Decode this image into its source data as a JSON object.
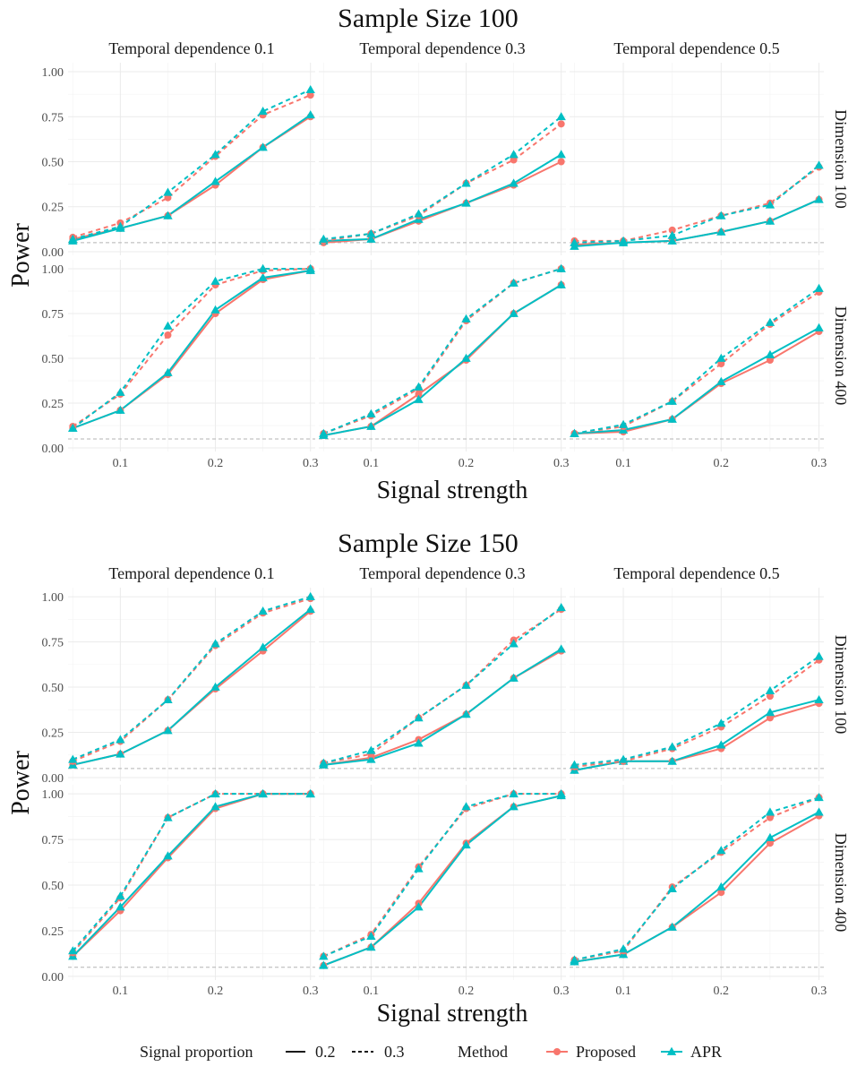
{
  "legend": {
    "proportion_title": "Signal proportion",
    "proportion_items": [
      {
        "label": "0.2",
        "linetype": "solid"
      },
      {
        "label": "0.3",
        "linetype": "dashed"
      }
    ],
    "method_title": "Method",
    "method_items": [
      {
        "label": "Proposed",
        "color": "#F8766D",
        "shape": "circle"
      },
      {
        "label": "APR",
        "color": "#00BFC4",
        "shape": "triangle"
      }
    ]
  },
  "chart_data": [
    {
      "type": "line",
      "title": "Sample Size 100",
      "xlabel": "Signal strength",
      "ylabel": "Power",
      "x": [
        0.05,
        0.1,
        0.15,
        0.2,
        0.25,
        0.3
      ],
      "x_ticks": [
        0.1,
        0.2,
        0.3
      ],
      "x_tick_labels": [
        "0.1",
        "0.2",
        "0.3"
      ],
      "xlim": [
        0.045,
        0.305
      ],
      "ylim": [
        -0.02,
        1.05
      ],
      "y_ticks": [
        0,
        0.25,
        0.5,
        0.75,
        1
      ],
      "y_tick_labels": [
        "0.00",
        "0.25",
        "0.50",
        "0.75",
        "1.00"
      ],
      "reference_line": 0.05,
      "col_facets": [
        "Temporal dependence 0.1",
        "Temporal dependence 0.3",
        "Temporal dependence 0.5"
      ],
      "row_facets": [
        "Dimension 100",
        "Dimension 400"
      ],
      "panels": [
        {
          "col": 0,
          "row": 0,
          "series": [
            {
              "method": "Proposed",
              "proportion": "0.2",
              "values": [
                0.07,
                0.13,
                0.2,
                0.37,
                0.58,
                0.75
              ]
            },
            {
              "method": "APR",
              "proportion": "0.2",
              "values": [
                0.06,
                0.13,
                0.2,
                0.39,
                0.58,
                0.76
              ]
            },
            {
              "method": "Proposed",
              "proportion": "0.3",
              "values": [
                0.08,
                0.16,
                0.3,
                0.53,
                0.76,
                0.87
              ]
            },
            {
              "method": "APR",
              "proportion": "0.3",
              "values": [
                0.07,
                0.14,
                0.33,
                0.54,
                0.78,
                0.9
              ]
            }
          ]
        },
        {
          "col": 1,
          "row": 0,
          "series": [
            {
              "method": "Proposed",
              "proportion": "0.2",
              "values": [
                0.05,
                0.07,
                0.17,
                0.27,
                0.37,
                0.5
              ]
            },
            {
              "method": "APR",
              "proportion": "0.2",
              "values": [
                0.06,
                0.07,
                0.18,
                0.27,
                0.38,
                0.54
              ]
            },
            {
              "method": "Proposed",
              "proportion": "0.3",
              "values": [
                0.06,
                0.1,
                0.2,
                0.38,
                0.51,
                0.71
              ]
            },
            {
              "method": "APR",
              "proportion": "0.3",
              "values": [
                0.07,
                0.1,
                0.21,
                0.38,
                0.54,
                0.75
              ]
            }
          ]
        },
        {
          "col": 2,
          "row": 0,
          "series": [
            {
              "method": "Proposed",
              "proportion": "0.2",
              "values": [
                0.04,
                0.05,
                0.06,
                0.11,
                0.17,
                0.29
              ]
            },
            {
              "method": "APR",
              "proportion": "0.2",
              "values": [
                0.03,
                0.05,
                0.06,
                0.11,
                0.17,
                0.29
              ]
            },
            {
              "method": "Proposed",
              "proportion": "0.3",
              "values": [
                0.06,
                0.06,
                0.12,
                0.2,
                0.27,
                0.47
              ]
            },
            {
              "method": "APR",
              "proportion": "0.3",
              "values": [
                0.05,
                0.06,
                0.09,
                0.2,
                0.26,
                0.48
              ]
            }
          ]
        },
        {
          "col": 0,
          "row": 1,
          "series": [
            {
              "method": "Proposed",
              "proportion": "0.2",
              "values": [
                0.11,
                0.21,
                0.41,
                0.75,
                0.94,
                0.99
              ]
            },
            {
              "method": "APR",
              "proportion": "0.2",
              "values": [
                0.11,
                0.21,
                0.42,
                0.77,
                0.95,
                0.99
              ]
            },
            {
              "method": "Proposed",
              "proportion": "0.3",
              "values": [
                0.12,
                0.3,
                0.63,
                0.91,
                0.99,
                1.0
              ]
            },
            {
              "method": "APR",
              "proportion": "0.3",
              "values": [
                0.11,
                0.31,
                0.68,
                0.93,
                1.0,
                1.0
              ]
            }
          ]
        },
        {
          "col": 1,
          "row": 1,
          "series": [
            {
              "method": "Proposed",
              "proportion": "0.2",
              "values": [
                0.07,
                0.12,
                0.3,
                0.49,
                0.75,
                0.91
              ]
            },
            {
              "method": "APR",
              "proportion": "0.2",
              "values": [
                0.07,
                0.12,
                0.27,
                0.5,
                0.75,
                0.91
              ]
            },
            {
              "method": "Proposed",
              "proportion": "0.3",
              "values": [
                0.08,
                0.18,
                0.33,
                0.71,
                0.92,
                1.0
              ]
            },
            {
              "method": "APR",
              "proportion": "0.3",
              "values": [
                0.08,
                0.19,
                0.34,
                0.72,
                0.92,
                1.0
              ]
            }
          ]
        },
        {
          "col": 2,
          "row": 1,
          "series": [
            {
              "method": "Proposed",
              "proportion": "0.2",
              "values": [
                0.08,
                0.09,
                0.16,
                0.36,
                0.49,
                0.65
              ]
            },
            {
              "method": "APR",
              "proportion": "0.2",
              "values": [
                0.08,
                0.1,
                0.16,
                0.37,
                0.52,
                0.67
              ]
            },
            {
              "method": "Proposed",
              "proportion": "0.3",
              "values": [
                0.08,
                0.12,
                0.26,
                0.47,
                0.69,
                0.87
              ]
            },
            {
              "method": "APR",
              "proportion": "0.3",
              "values": [
                0.08,
                0.13,
                0.26,
                0.5,
                0.7,
                0.89
              ]
            }
          ]
        }
      ]
    },
    {
      "type": "line",
      "title": "Sample Size 150",
      "xlabel": "Signal strength",
      "ylabel": "Power",
      "x": [
        0.05,
        0.1,
        0.15,
        0.2,
        0.25,
        0.3
      ],
      "x_ticks": [
        0.1,
        0.2,
        0.3
      ],
      "x_tick_labels": [
        "0.1",
        "0.2",
        "0.3"
      ],
      "xlim": [
        0.045,
        0.305
      ],
      "ylim": [
        -0.02,
        1.05
      ],
      "y_ticks": [
        0,
        0.25,
        0.5,
        0.75,
        1
      ],
      "y_tick_labels": [
        "0.00",
        "0.25",
        "0.50",
        "0.75",
        "1.00"
      ],
      "reference_line": 0.05,
      "col_facets": [
        "Temporal dependence 0.1",
        "Temporal dependence 0.3",
        "Temporal dependence 0.5"
      ],
      "row_facets": [
        "Dimension 100",
        "Dimension 400"
      ],
      "panels": [
        {
          "col": 0,
          "row": 0,
          "series": [
            {
              "method": "Proposed",
              "proportion": "0.2",
              "values": [
                0.07,
                0.13,
                0.26,
                0.49,
                0.7,
                0.92
              ]
            },
            {
              "method": "APR",
              "proportion": "0.2",
              "values": [
                0.07,
                0.13,
                0.26,
                0.5,
                0.72,
                0.93
              ]
            },
            {
              "method": "Proposed",
              "proportion": "0.3",
              "values": [
                0.09,
                0.2,
                0.43,
                0.73,
                0.91,
                0.99
              ]
            },
            {
              "method": "APR",
              "proportion": "0.3",
              "values": [
                0.1,
                0.21,
                0.43,
                0.74,
                0.92,
                1.0
              ]
            }
          ]
        },
        {
          "col": 1,
          "row": 0,
          "series": [
            {
              "method": "Proposed",
              "proportion": "0.2",
              "values": [
                0.07,
                0.11,
                0.21,
                0.35,
                0.55,
                0.7
              ]
            },
            {
              "method": "APR",
              "proportion": "0.2",
              "values": [
                0.07,
                0.1,
                0.19,
                0.35,
                0.55,
                0.71
              ]
            },
            {
              "method": "Proposed",
              "proportion": "0.3",
              "values": [
                0.08,
                0.13,
                0.33,
                0.51,
                0.76,
                0.93
              ]
            },
            {
              "method": "APR",
              "proportion": "0.3",
              "values": [
                0.08,
                0.15,
                0.33,
                0.51,
                0.74,
                0.94
              ]
            }
          ]
        },
        {
          "col": 2,
          "row": 0,
          "series": [
            {
              "method": "Proposed",
              "proportion": "0.2",
              "values": [
                0.04,
                0.09,
                0.09,
                0.16,
                0.33,
                0.41
              ]
            },
            {
              "method": "APR",
              "proportion": "0.2",
              "values": [
                0.04,
                0.09,
                0.09,
                0.18,
                0.36,
                0.43
              ]
            },
            {
              "method": "Proposed",
              "proportion": "0.3",
              "values": [
                0.06,
                0.09,
                0.16,
                0.28,
                0.45,
                0.65
              ]
            },
            {
              "method": "APR",
              "proportion": "0.3",
              "values": [
                0.07,
                0.1,
                0.17,
                0.3,
                0.48,
                0.67
              ]
            }
          ]
        },
        {
          "col": 0,
          "row": 1,
          "series": [
            {
              "method": "Proposed",
              "proportion": "0.2",
              "values": [
                0.11,
                0.36,
                0.65,
                0.92,
                1.0,
                1.0
              ]
            },
            {
              "method": "APR",
              "proportion": "0.2",
              "values": [
                0.11,
                0.38,
                0.66,
                0.93,
                1.0,
                1.0
              ]
            },
            {
              "method": "Proposed",
              "proportion": "0.3",
              "values": [
                0.13,
                0.43,
                0.87,
                1.0,
                1.0,
                1.0
              ]
            },
            {
              "method": "APR",
              "proportion": "0.3",
              "values": [
                0.14,
                0.44,
                0.87,
                1.0,
                1.0,
                1.0
              ]
            }
          ]
        },
        {
          "col": 1,
          "row": 1,
          "series": [
            {
              "method": "Proposed",
              "proportion": "0.2",
              "values": [
                0.06,
                0.16,
                0.4,
                0.73,
                0.93,
                0.99
              ]
            },
            {
              "method": "APR",
              "proportion": "0.2",
              "values": [
                0.06,
                0.16,
                0.38,
                0.72,
                0.93,
                0.99
              ]
            },
            {
              "method": "Proposed",
              "proportion": "0.3",
              "values": [
                0.11,
                0.23,
                0.6,
                0.92,
                1.0,
                1.0
              ]
            },
            {
              "method": "APR",
              "proportion": "0.3",
              "values": [
                0.11,
                0.22,
                0.59,
                0.93,
                1.0,
                1.0
              ]
            }
          ]
        },
        {
          "col": 2,
          "row": 1,
          "series": [
            {
              "method": "Proposed",
              "proportion": "0.2",
              "values": [
                0.08,
                0.12,
                0.27,
                0.46,
                0.73,
                0.88
              ]
            },
            {
              "method": "APR",
              "proportion": "0.2",
              "values": [
                0.08,
                0.12,
                0.27,
                0.49,
                0.76,
                0.9
              ]
            },
            {
              "method": "Proposed",
              "proportion": "0.3",
              "values": [
                0.09,
                0.14,
                0.49,
                0.68,
                0.87,
                0.98
              ]
            },
            {
              "method": "APR",
              "proportion": "0.3",
              "values": [
                0.09,
                0.15,
                0.48,
                0.69,
                0.9,
                0.98
              ]
            }
          ]
        }
      ]
    }
  ]
}
